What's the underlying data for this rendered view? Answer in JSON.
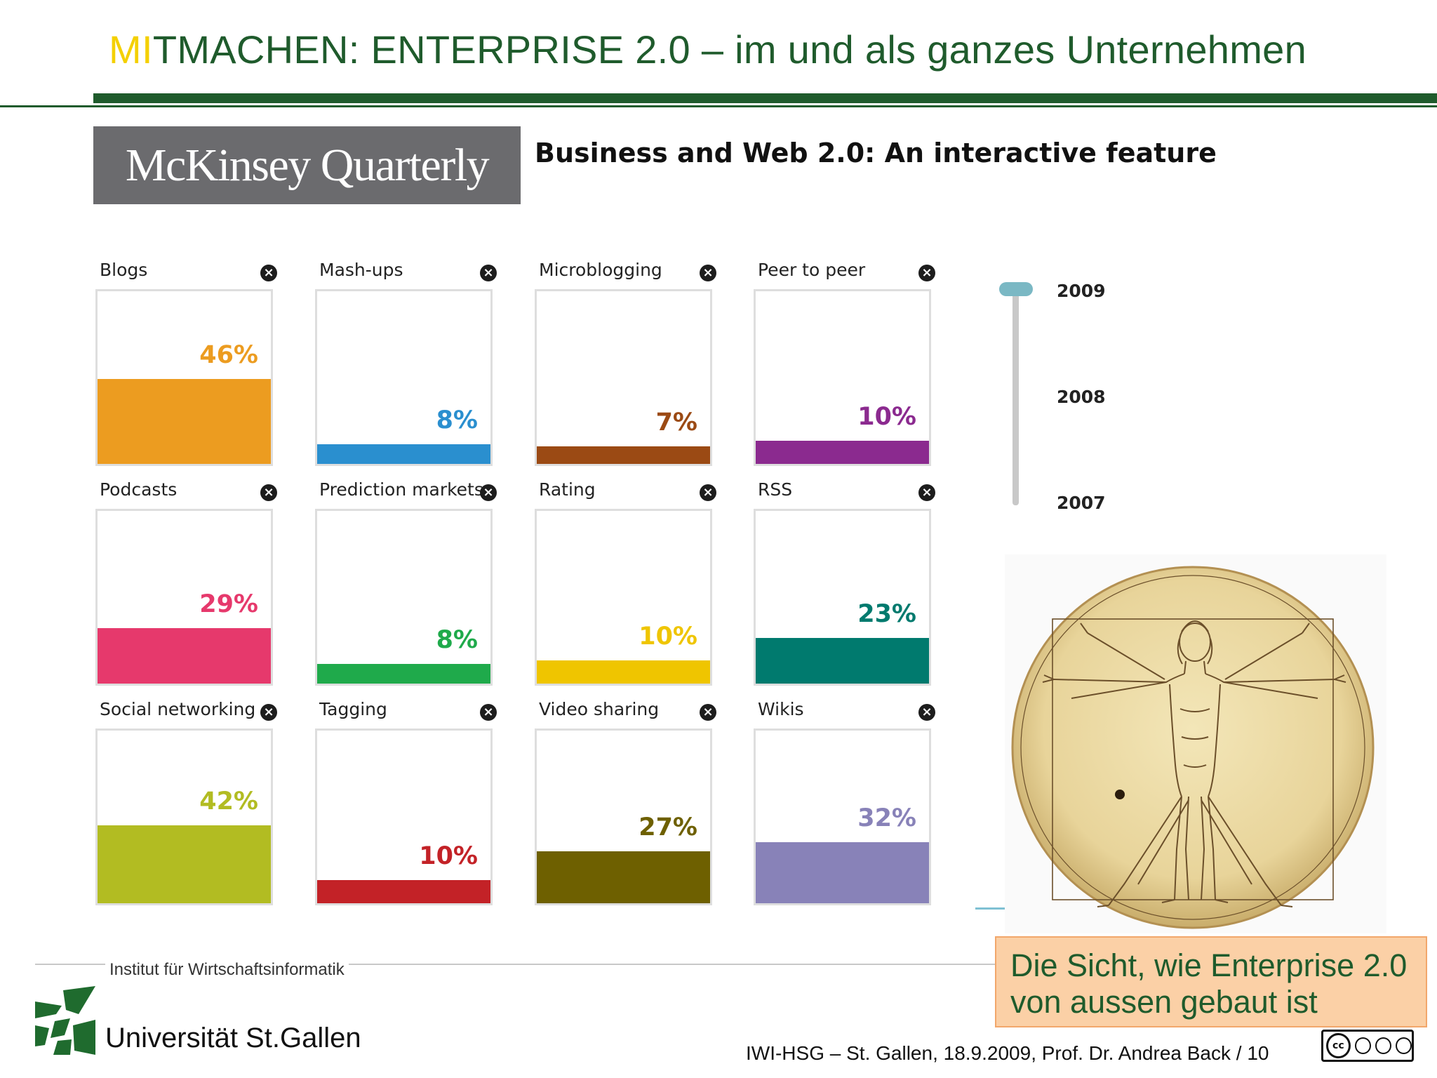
{
  "header": {
    "title_accent": "MI",
    "title_rest": "TMACHEN: ENTERPRISE 2.0 – im und als ganzes Unternehmen"
  },
  "source": {
    "logo_text": "McKinsey Quarterly",
    "feature_title": "Business and Web 2.0:  An interactive feature"
  },
  "chart_data": {
    "type": "bar",
    "categories": [
      "Blogs",
      "Mash-ups",
      "Microblogging",
      "Peer to peer",
      "Podcasts",
      "Prediction markets",
      "Rating",
      "RSS",
      "Social networking",
      "Tagging",
      "Video sharing",
      "Wikis"
    ],
    "values": [
      46,
      8,
      7,
      10,
      29,
      8,
      10,
      23,
      42,
      10,
      27,
      32
    ],
    "labels": [
      "46%",
      "8%",
      "7%",
      "10%",
      "29%",
      "8%",
      "10%",
      "23%",
      "42%",
      "10%",
      "27%",
      "32%"
    ],
    "colors": [
      "#ec9c20",
      "#2a8fcf",
      "#9b4a14",
      "#8b2a8f",
      "#e6396c",
      "#1faa4b",
      "#efc500",
      "#007a6e",
      "#b2bc22",
      "#c32227",
      "#6e6000",
      "#8882b8"
    ],
    "ylim": [
      0,
      100
    ],
    "selected_year": "2009"
  },
  "slider": {
    "years": [
      "2009",
      "2008",
      "2007"
    ]
  },
  "callout": {
    "line1": "Die Sicht, wie Enterprise 2.0",
    "line2": "von aussen gebaut ist"
  },
  "footer": {
    "institute": "Institut für Wirtschaftsinformatik",
    "university": "Universität St.Gallen",
    "citation": "IWI-HSG – St. Gallen, 18.9.2009, Prof. Dr. Andrea Back / 10"
  },
  "close_symbol": "×"
}
